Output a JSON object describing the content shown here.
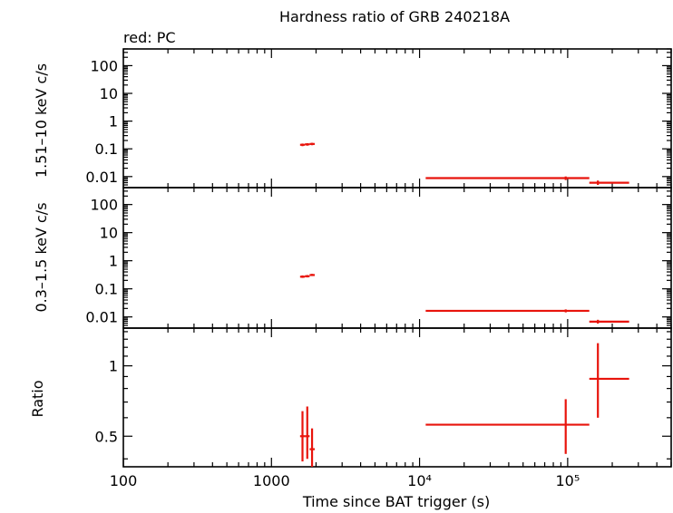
{
  "chart_data": {
    "type": "scatter",
    "title": "Hardness ratio of GRB 240218A",
    "subtitle": "red: PC",
    "xlabel": "Time since BAT trigger (s)",
    "xscale": "log",
    "xlim": [
      100,
      500000
    ],
    "x_tick_labels": [
      "100",
      "1000",
      "10⁴",
      "10⁵"
    ],
    "colors": {
      "series": "#e8140c",
      "axes": "#000000"
    },
    "panels": [
      {
        "id": "hard",
        "ylabel": "1.51–10 keV c/s",
        "yscale": "log",
        "ylim": [
          0.004,
          400
        ],
        "y_tick_labels": [
          "0.01",
          "0.1",
          "1",
          "10",
          "100"
        ],
        "points": [
          {
            "x": 1620,
            "xlo": 1560,
            "xhi": 1680,
            "y": 0.14,
            "ylo": 0.125,
            "yhi": 0.155
          },
          {
            "x": 1745,
            "xlo": 1680,
            "xhi": 1810,
            "y": 0.145,
            "ylo": 0.13,
            "yhi": 0.16
          },
          {
            "x": 1880,
            "xlo": 1810,
            "xhi": 1960,
            "y": 0.15,
            "ylo": 0.135,
            "yhi": 0.165
          },
          {
            "x": 97000,
            "xlo": 11000,
            "xhi": 140000,
            "y": 0.0088,
            "ylo": 0.0075,
            "yhi": 0.0101
          },
          {
            "x": 160000,
            "xlo": 140000,
            "xhi": 260000,
            "y": 0.006,
            "ylo": 0.005,
            "yhi": 0.0072
          }
        ]
      },
      {
        "id": "soft",
        "ylabel": "0.3–1.5 keV c/s",
        "yscale": "log",
        "ylim": [
          0.004,
          400
        ],
        "y_tick_labels": [
          "0.01",
          "0.1",
          "1",
          "10",
          "100"
        ],
        "points": [
          {
            "x": 1620,
            "xlo": 1560,
            "xhi": 1680,
            "y": 0.27,
            "ylo": 0.245,
            "yhi": 0.3
          },
          {
            "x": 1745,
            "xlo": 1680,
            "xhi": 1810,
            "y": 0.28,
            "ylo": 0.255,
            "yhi": 0.31
          },
          {
            "x": 1880,
            "xlo": 1810,
            "xhi": 1960,
            "y": 0.31,
            "ylo": 0.285,
            "yhi": 0.34
          },
          {
            "x": 97000,
            "xlo": 11000,
            "xhi": 140000,
            "y": 0.0165,
            "ylo": 0.0145,
            "yhi": 0.0185
          },
          {
            "x": 160000,
            "xlo": 140000,
            "xhi": 260000,
            "y": 0.0068,
            "ylo": 0.0058,
            "yhi": 0.0079
          }
        ]
      },
      {
        "id": "ratio",
        "ylabel": "Ratio",
        "yscale": "log",
        "ylim": [
          0.37,
          1.45
        ],
        "y_tick_labels": [
          "0.5",
          "1"
        ],
        "points": [
          {
            "x": 1620,
            "xlo": 1560,
            "xhi": 1680,
            "y": 0.5,
            "ylo": 0.39,
            "yhi": 0.64
          },
          {
            "x": 1745,
            "xlo": 1680,
            "xhi": 1810,
            "y": 0.5,
            "ylo": 0.4,
            "yhi": 0.67
          },
          {
            "x": 1880,
            "xlo": 1810,
            "xhi": 1960,
            "y": 0.44,
            "ylo": 0.37,
            "yhi": 0.54
          },
          {
            "x": 97000,
            "xlo": 11000,
            "xhi": 140000,
            "y": 0.56,
            "ylo": 0.42,
            "yhi": 0.72
          },
          {
            "x": 160000,
            "xlo": 140000,
            "xhi": 260000,
            "y": 0.88,
            "ylo": 0.6,
            "yhi": 1.25
          }
        ]
      }
    ]
  }
}
